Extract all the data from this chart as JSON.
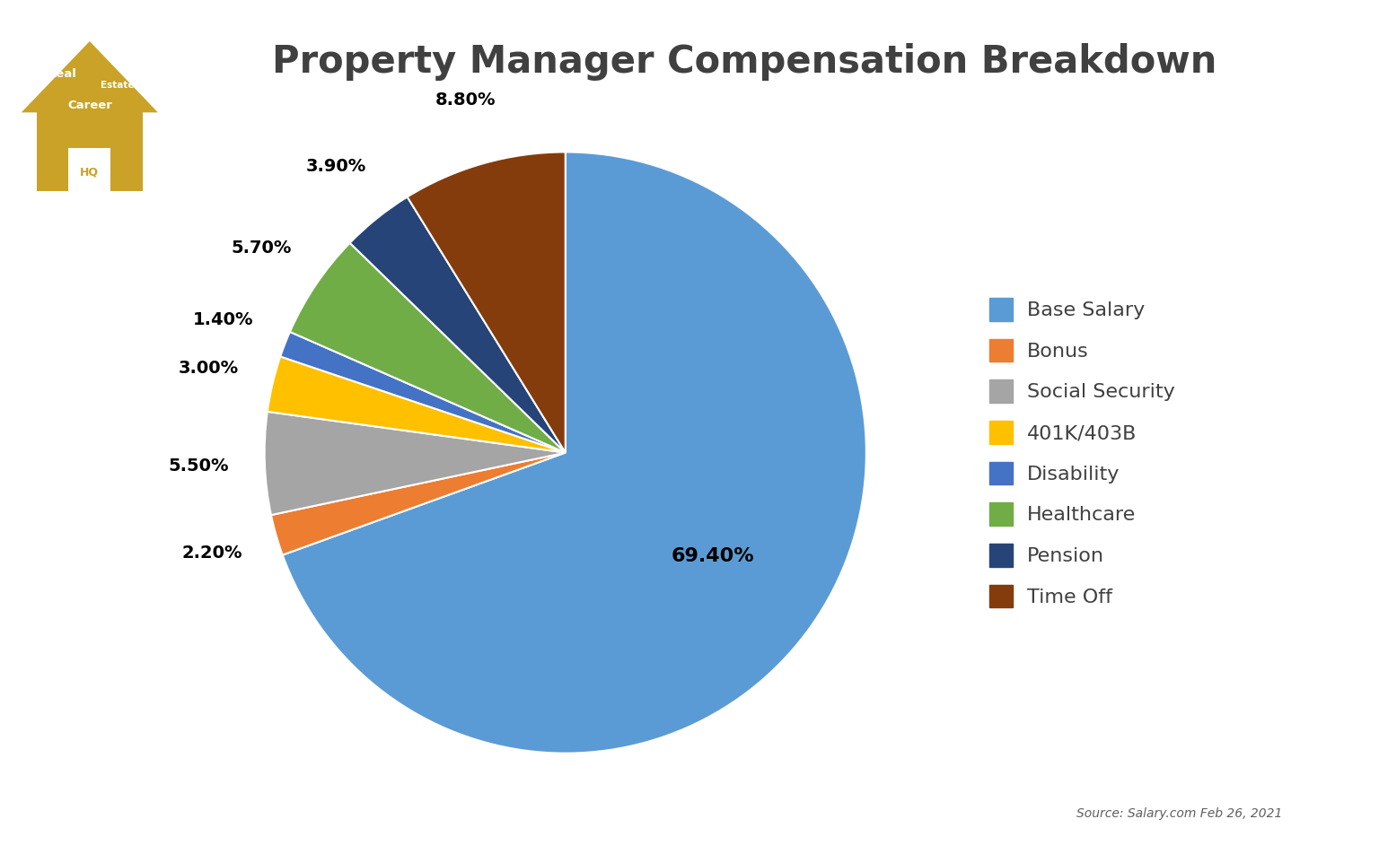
{
  "title": "Property Manager Compensation Breakdown",
  "title_color": "#404040",
  "title_fontsize": 30,
  "categories": [
    "Base Salary",
    "Bonus",
    "Social Security",
    "401K/403B",
    "Disability",
    "Healthcare",
    "Pension",
    "Time Off"
  ],
  "values": [
    69.4,
    2.2,
    5.5,
    3.0,
    1.4,
    5.7,
    3.9,
    8.8
  ],
  "colors": [
    "#5B9BD5",
    "#ED7D31",
    "#A5A5A5",
    "#FFC000",
    "#4472C4",
    "#70AD47",
    "#264478",
    "#843C0C"
  ],
  "labels": [
    "69.40%",
    "2.20%",
    "5.50%",
    "3.00%",
    "1.40%",
    "5.70%",
    "3.90%",
    "8.80%"
  ],
  "source_text": "Source: Salary.com Feb 26, 2021",
  "background_color": "#FFFFFF",
  "label_fontsize": 14,
  "legend_fontsize": 16,
  "logo_color": "#C9A227",
  "logo_text_color": "#FFFFFF",
  "logo_hq_color": "#C9A227"
}
